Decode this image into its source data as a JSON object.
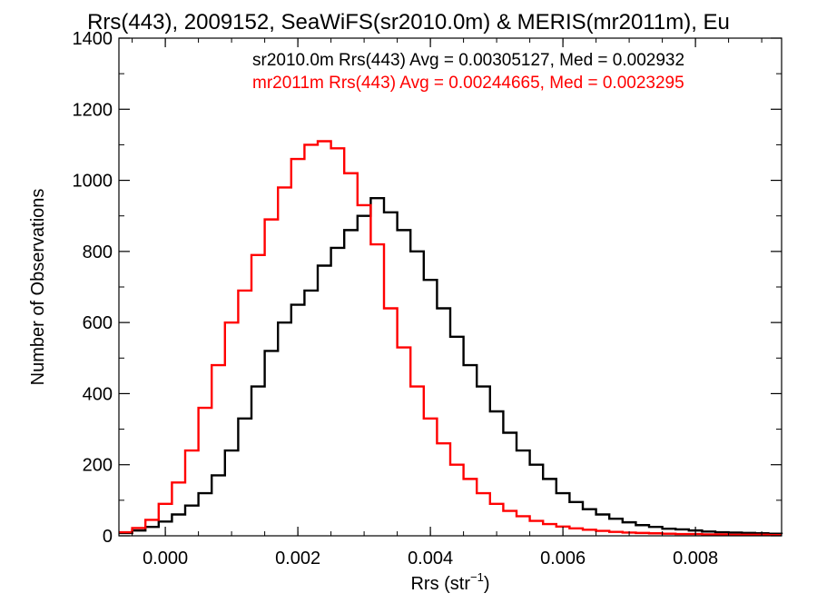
{
  "chart_data": {
    "type": "line",
    "title": "Rrs(443), 2009152, SeaWiFS(sr2010.0m) & MERIS(mr2011m), Eu",
    "xlabel_prefix": "Rrs (str",
    "xlabel_sup": "−1",
    "xlabel_suffix": ")",
    "ylabel": "Number of Observations",
    "xlim": [
      -0.0007,
      0.0093
    ],
    "ylim": [
      0,
      1400
    ],
    "x_ticks": [
      0.0,
      0.002,
      0.004,
      0.006,
      0.008
    ],
    "x_tick_labels": [
      "0.000",
      "0.002",
      "0.004",
      "0.006",
      "0.008"
    ],
    "y_ticks": [
      0,
      200,
      400,
      600,
      800,
      1000,
      1200,
      1400
    ],
    "y_tick_labels": [
      "0",
      "200",
      "400",
      "600",
      "800",
      "1000",
      "1200",
      "1400"
    ],
    "step": "histogram",
    "series": [
      {
        "name": "sr2010.0m",
        "legend_text": "sr2010.0m Rrs(443) Avg = 0.00305127, Med = 0.002932",
        "color": "#000000",
        "x": [
          -0.0007,
          -0.0005,
          -0.0003,
          -0.0001,
          0.0001,
          0.0003,
          0.0005,
          0.0007,
          0.0009,
          0.0011,
          0.0013,
          0.0015,
          0.0017,
          0.0019,
          0.0021,
          0.0023,
          0.0025,
          0.0027,
          0.0029,
          0.0031,
          0.0033,
          0.0035,
          0.0037,
          0.0039,
          0.0041,
          0.0043,
          0.0045,
          0.0047,
          0.0049,
          0.0051,
          0.0053,
          0.0055,
          0.0057,
          0.0059,
          0.0061,
          0.0063,
          0.0065,
          0.0067,
          0.0069,
          0.0071,
          0.0073,
          0.0075,
          0.0077,
          0.0079,
          0.0081,
          0.0083,
          0.0085,
          0.0087,
          0.0089,
          0.0091,
          0.0093
        ],
        "values": [
          8,
          15,
          25,
          40,
          60,
          85,
          120,
          170,
          240,
          330,
          420,
          520,
          600,
          650,
          690,
          760,
          810,
          860,
          900,
          950,
          910,
          860,
          800,
          720,
          640,
          560,
          480,
          420,
          350,
          290,
          240,
          200,
          160,
          120,
          95,
          75,
          60,
          48,
          38,
          30,
          25,
          20,
          18,
          15,
          12,
          10,
          9,
          8,
          7,
          6,
          5
        ]
      },
      {
        "name": "mr2011m",
        "legend_text": "mr2011m Rrs(443) Avg = 0.00244665, Med = 0.0023295",
        "color": "#ff0000",
        "x": [
          -0.0007,
          -0.0005,
          -0.0003,
          -0.0001,
          0.0001,
          0.0003,
          0.0005,
          0.0007,
          0.0009,
          0.0011,
          0.0013,
          0.0015,
          0.0017,
          0.0019,
          0.0021,
          0.0023,
          0.0025,
          0.0027,
          0.0029,
          0.0031,
          0.0033,
          0.0035,
          0.0037,
          0.0039,
          0.0041,
          0.0043,
          0.0045,
          0.0047,
          0.0049,
          0.0051,
          0.0053,
          0.0055,
          0.0057,
          0.0059,
          0.0061,
          0.0063,
          0.0065,
          0.0067,
          0.0069,
          0.0071,
          0.0073,
          0.0075,
          0.0077,
          0.0079,
          0.0081,
          0.0083,
          0.0085,
          0.0087,
          0.0089,
          0.0091,
          0.0093
        ],
        "values": [
          10,
          22,
          45,
          90,
          150,
          240,
          360,
          480,
          600,
          690,
          790,
          890,
          980,
          1060,
          1100,
          1110,
          1090,
          1020,
          930,
          820,
          640,
          530,
          420,
          330,
          260,
          200,
          160,
          120,
          90,
          70,
          55,
          42,
          33,
          26,
          21,
          17,
          14,
          11,
          9,
          8,
          7,
          6,
          5,
          5,
          4,
          4,
          3,
          3,
          3,
          2,
          2
        ]
      }
    ],
    "grid": false,
    "legend_placement": "top-right"
  }
}
